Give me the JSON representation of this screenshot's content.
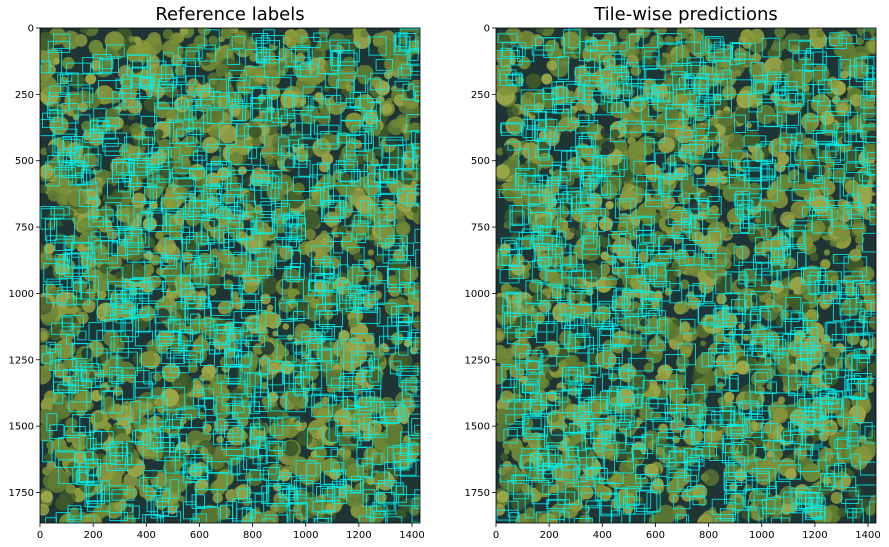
{
  "figure": {
    "panels": [
      {
        "id": "reference",
        "title": "Reference labels",
        "x_ticks": [
          0,
          200,
          400,
          600,
          800,
          1000,
          1200,
          1400
        ],
        "y_ticks": [
          0,
          250,
          500,
          750,
          1000,
          1250,
          1500,
          1750
        ],
        "xlim": [
          0,
          1430
        ],
        "ylim": [
          1865,
          0
        ],
        "box_color": "#00f0f0",
        "box_seed": 11
      },
      {
        "id": "predictions",
        "title": "Tile-wise predictions",
        "x_ticks": [
          0,
          200,
          400,
          600,
          800,
          1000,
          1200,
          1400
        ],
        "y_ticks": [
          0,
          250,
          500,
          750,
          1000,
          1250,
          1500,
          1750
        ],
        "xlim": [
          0,
          1430
        ],
        "ylim": [
          1865,
          0
        ],
        "box_color": "#00f0f0",
        "box_seed": 29
      }
    ],
    "colors": {
      "canopy_light": "#8a9a3c",
      "canopy_mid": "#5f7a32",
      "canopy_dark": "#3f5a2a",
      "gap_shadow": "#1f3535"
    }
  }
}
